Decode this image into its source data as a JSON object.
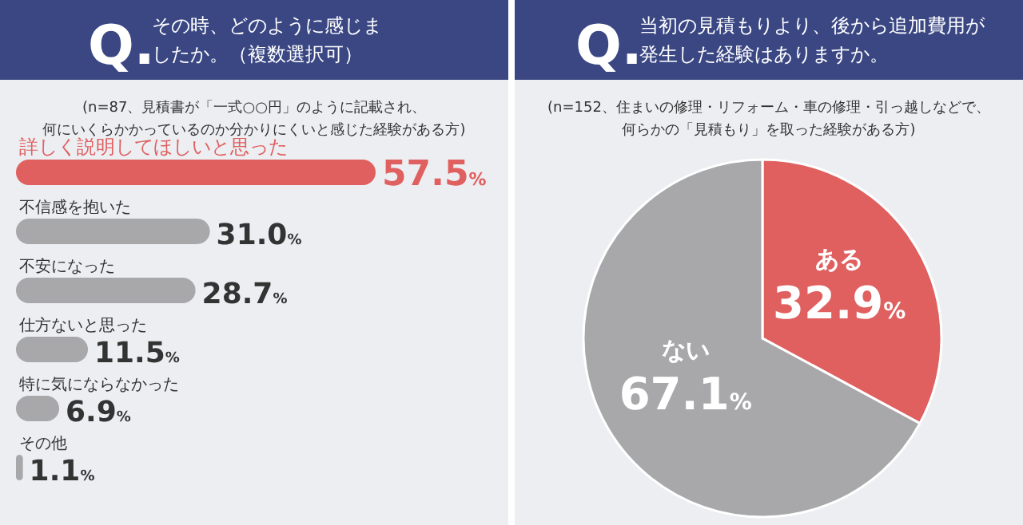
{
  "chart_data": [
    {
      "type": "bar",
      "orientation": "horizontal",
      "title": "その時、どのように感じましたか。（複数選択可）",
      "subtitle": "(n=87、見積書が「一式○○円」のように記載され、何にいくらかかっているのか分かりにくいと感じた経験がある方)",
      "annotations": [
        "Q."
      ],
      "categories": [
        "詳しく説明してほしいと思った",
        "不信感を抱いた",
        "不安になった",
        "仕方ないと思った",
        "特に気にならなかった",
        "その他"
      ],
      "values": [
        57.5,
        31.0,
        28.7,
        11.5,
        6.9,
        1.1
      ],
      "colors": [
        "#e06060",
        "#a8a8ab",
        "#a8a8ab",
        "#a8a8ab",
        "#a8a8ab",
        "#a8a8ab"
      ],
      "value_labels": [
        "57.5%",
        "31.0%",
        "28.7%",
        "11.5%",
        "6.9%",
        "1.1%"
      ]
    },
    {
      "type": "pie",
      "title": "当初の見積もりより、後から追加費用が発生した経験はありますか。",
      "subtitle": "(n=152、住まいの修理・リフォーム・車の修理・引っ越しなどで、何らかの「見積もり」を取った経験がある方)",
      "annotations": [
        "Q."
      ],
      "categories": [
        "ある",
        "ない"
      ],
      "values": [
        32.9,
        67.1
      ],
      "colors": [
        "#e06060",
        "#a8a8ab"
      ],
      "value_labels": [
        "32.9%",
        "67.1%"
      ]
    }
  ]
}
